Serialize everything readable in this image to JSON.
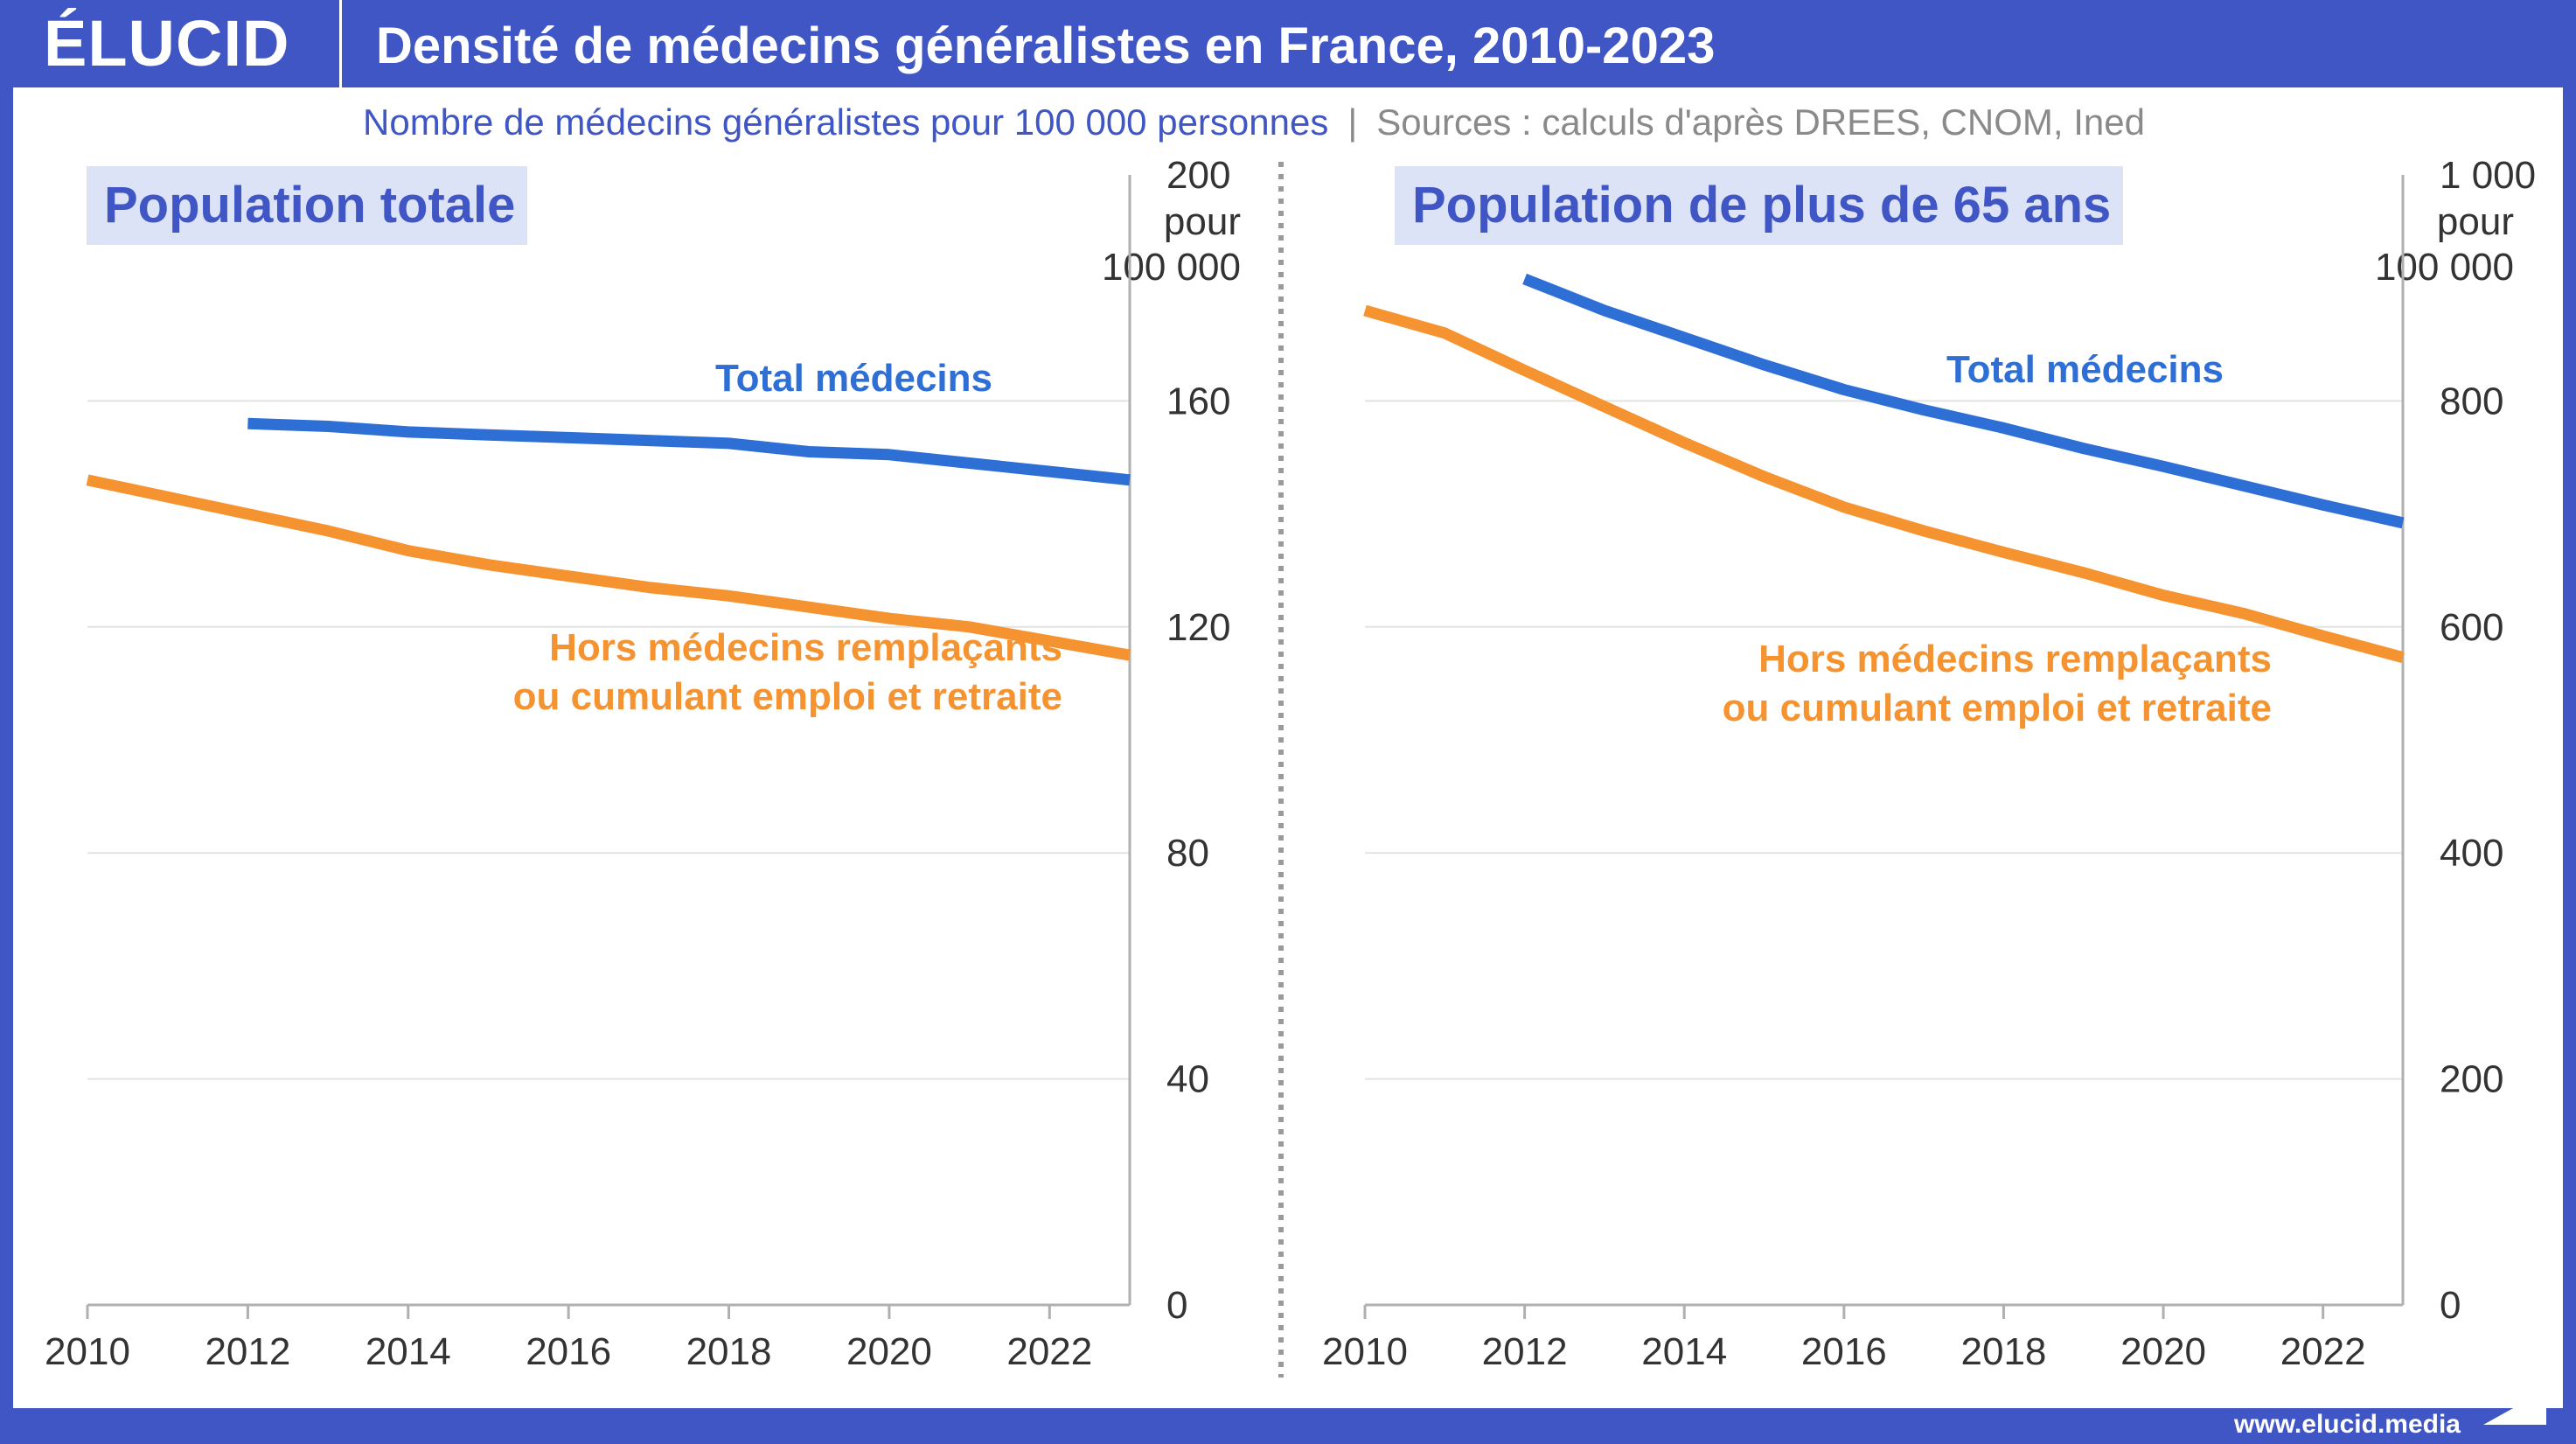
{
  "header": {
    "logo": "ÉLUCID",
    "title": "Densité de médecins généralistes en France, 2010-2023"
  },
  "subtitle": {
    "text": "Nombre de médecins généralistes pour 100 000 personnes",
    "separator": "|",
    "source": "Sources : calculs d'après DREES, CNOM, Ined"
  },
  "footer": {
    "url": "www.elucid.media"
  },
  "colors": {
    "brand": "#3f56c4",
    "total": "#2e6fd6",
    "hors": "#f59331",
    "grid": "#e3e3e3",
    "axis": "#b0b0b0",
    "label_bg": "#dde3f6"
  },
  "chart_data": [
    {
      "type": "line",
      "panel_title": "Population totale",
      "unit_label": [
        "pour",
        "100 000"
      ],
      "xlim": [
        2010,
        2023
      ],
      "ylim": [
        0,
        200
      ],
      "x_ticks": [
        2010,
        2012,
        2014,
        2016,
        2018,
        2020,
        2022
      ],
      "y_ticks": [
        0,
        40,
        80,
        120,
        160,
        200
      ],
      "grid": true,
      "series": [
        {
          "name": "Total médecins",
          "color_key": "total",
          "x": [
            2012,
            2013,
            2014,
            2015,
            2016,
            2017,
            2018,
            2019,
            2020,
            2021,
            2022,
            2023
          ],
          "y": [
            156,
            155.5,
            154.5,
            154,
            153.5,
            153,
            152.5,
            151,
            150.5,
            149,
            147.5,
            146
          ]
        },
        {
          "name": "Hors médecins remplaçants ou cumulant emploi et retraite",
          "label_lines": [
            "Hors médecins remplaçants",
            "ou cumulant emploi et retraite"
          ],
          "color_key": "hors",
          "x": [
            2010,
            2011,
            2012,
            2013,
            2014,
            2015,
            2016,
            2017,
            2018,
            2019,
            2020,
            2021,
            2022,
            2023
          ],
          "y": [
            146,
            143,
            140,
            137,
            133.5,
            131,
            129,
            127,
            125.5,
            123.5,
            121.5,
            120,
            117.5,
            115
          ]
        }
      ]
    },
    {
      "type": "line",
      "panel_title": "Population de plus de 65 ans",
      "unit_label": [
        "pour",
        "100 000"
      ],
      "xlim": [
        2010,
        2023
      ],
      "ylim": [
        0,
        1000
      ],
      "x_ticks": [
        2010,
        2012,
        2014,
        2016,
        2018,
        2020,
        2022
      ],
      "y_ticks": [
        0,
        200,
        400,
        600,
        800,
        1000
      ],
      "y_tick_labels": [
        "0",
        "200",
        "400",
        "600",
        "800",
        "1 000"
      ],
      "grid": true,
      "series": [
        {
          "name": "Total médecins",
          "color_key": "total",
          "x": [
            2012,
            2013,
            2014,
            2015,
            2016,
            2017,
            2018,
            2019,
            2020,
            2021,
            2022,
            2023
          ],
          "y": [
            908,
            880,
            856,
            832,
            810,
            792,
            776,
            758,
            742,
            725,
            708,
            692
          ]
        },
        {
          "name": "Hors médecins remplaçants ou cumulant emploi et retraite",
          "label_lines": [
            "Hors médecins remplaçants",
            "ou cumulant emploi et retraite"
          ],
          "color_key": "hors",
          "x": [
            2010,
            2011,
            2012,
            2013,
            2014,
            2015,
            2016,
            2017,
            2018,
            2019,
            2020,
            2021,
            2022,
            2023
          ],
          "y": [
            880,
            860,
            827,
            795,
            763,
            733,
            706,
            685,
            666,
            648,
            628,
            612,
            592,
            573
          ]
        }
      ]
    }
  ]
}
